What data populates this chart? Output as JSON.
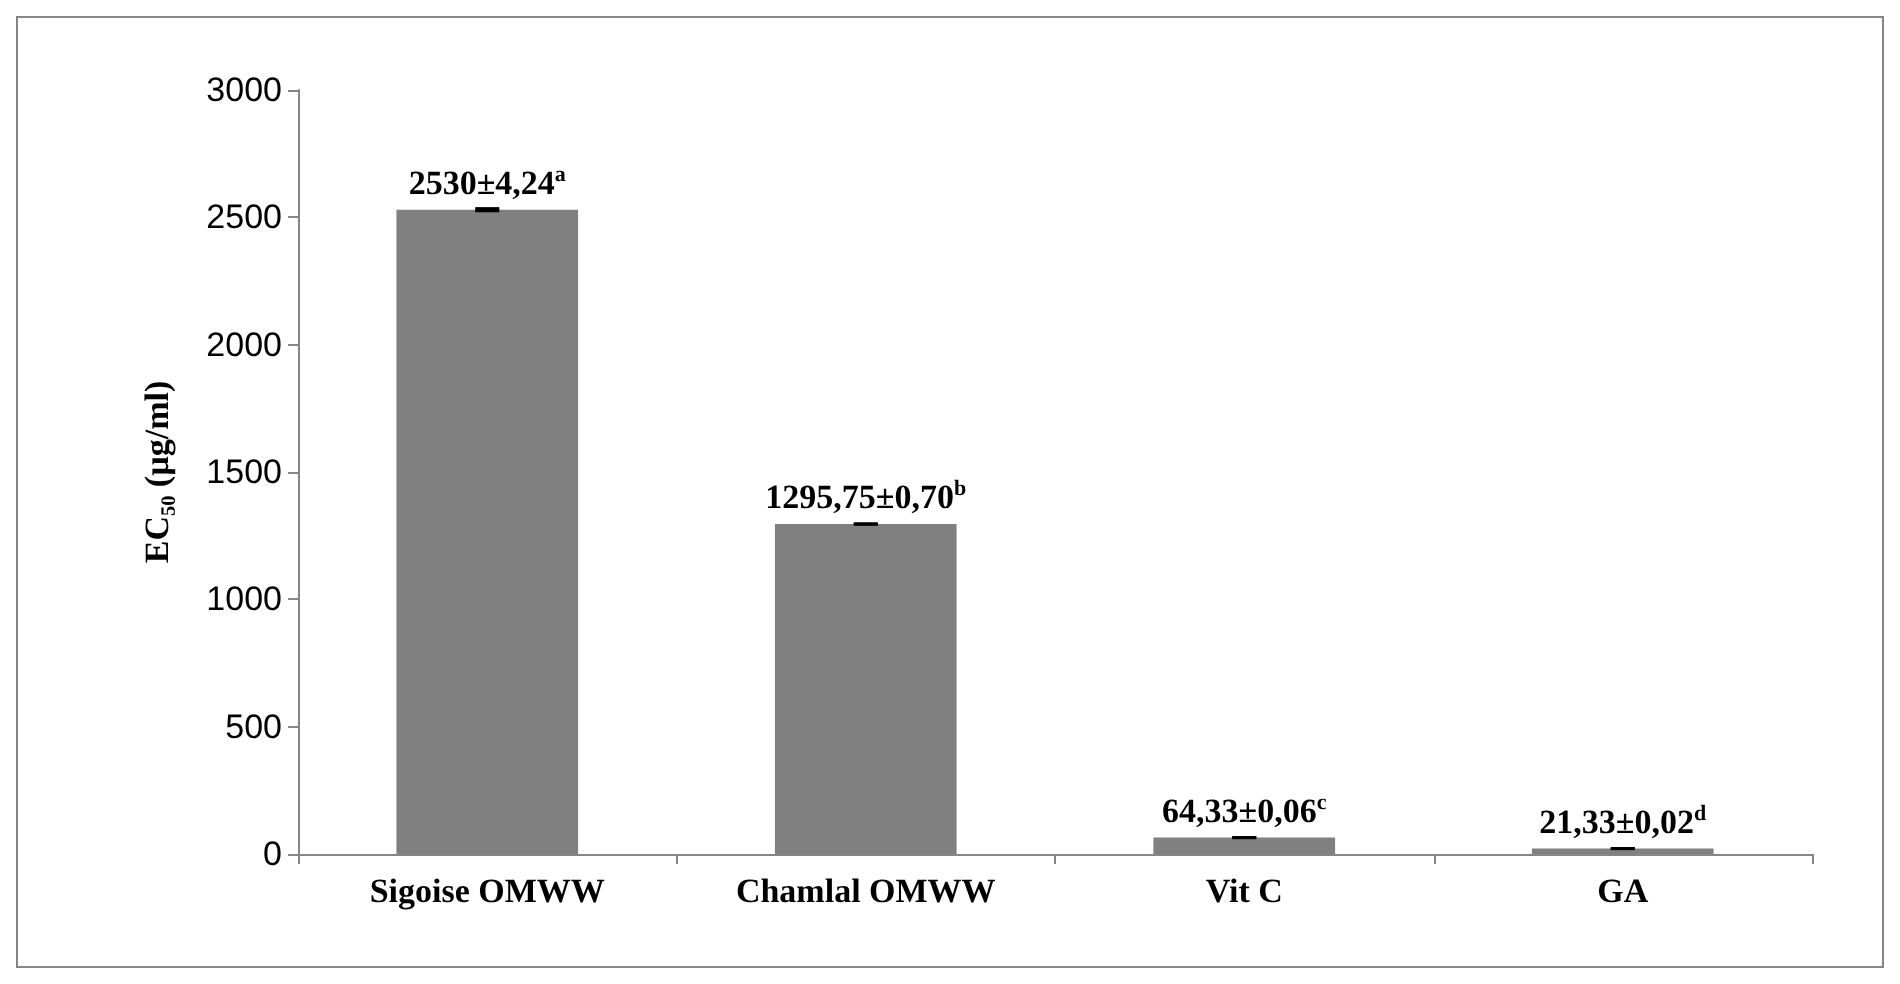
{
  "chart_data": {
    "type": "bar",
    "ylabel": "EC₅₀ (µg/ml)",
    "categories": [
      "Sigoise OMWW",
      "Chamlal OMWW",
      "Vit C",
      "GA"
    ],
    "values": [
      2530,
      1295.75,
      64.33,
      21.33
    ],
    "errors": [
      4.24,
      0.7,
      0.06,
      0.02
    ],
    "value_labels": [
      "2530±4,24$^{a}$",
      "1295,75±0,70$^{b}$",
      "64,33±0,06$^{c}$",
      "21,33±0,02$^{d}$"
    ],
    "color": "#808080",
    "ylim": [
      0,
      3000
    ],
    "yticks": [
      0,
      500,
      1000,
      1500,
      2000,
      2500,
      3000
    ],
    "grid": false
  }
}
